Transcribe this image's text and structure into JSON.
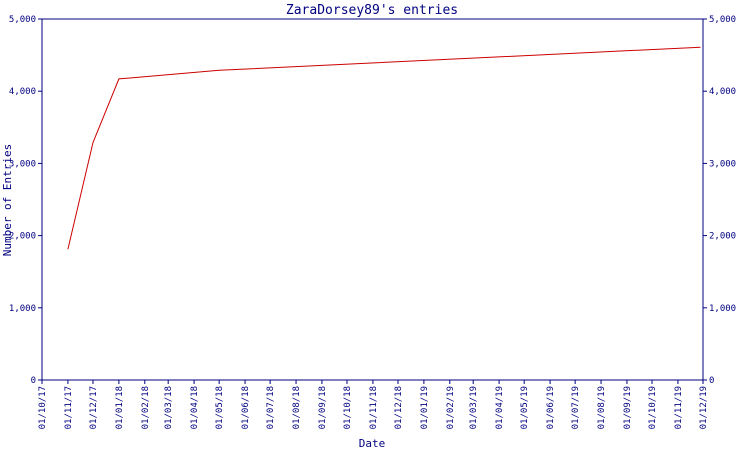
{
  "chart_data": {
    "type": "line",
    "title": "ZaraDorsey89's entries",
    "xlabel": "Date",
    "ylabel": "Number of Entries",
    "ylim": [
      0,
      5000
    ],
    "xlim": [
      "2017-10-01",
      "2019-12-01"
    ],
    "y_ticks": [
      "0",
      "1,000",
      "2,000",
      "3,000",
      "4,000",
      "5,000"
    ],
    "y_tick_values": [
      0,
      1000,
      2000,
      3000,
      4000,
      5000
    ],
    "x_ticks": [
      "01/10/17",
      "01/11/17",
      "01/12/17",
      "01/01/18",
      "01/02/18",
      "01/03/18",
      "01/04/18",
      "01/05/18",
      "01/06/18",
      "01/07/18",
      "01/08/18",
      "01/09/18",
      "01/10/18",
      "01/11/18",
      "01/12/18",
      "01/01/19",
      "01/02/19",
      "01/03/19",
      "01/04/19",
      "01/05/19",
      "01/06/19",
      "01/07/19",
      "01/08/19",
      "01/09/19",
      "01/10/19",
      "01/11/19",
      "01/12/19"
    ],
    "grid": false,
    "series": [
      {
        "x": [
          "2017-11-01",
          "2017-12-01",
          "2018-01-01",
          "2018-05-01",
          "2019-11-28"
        ],
        "y": [
          1810,
          3290,
          4170,
          4290,
          4610
        ]
      }
    ],
    "colors": {
      "axis": "#000080",
      "series": "#cc0000",
      "background": "#ffffff"
    }
  }
}
